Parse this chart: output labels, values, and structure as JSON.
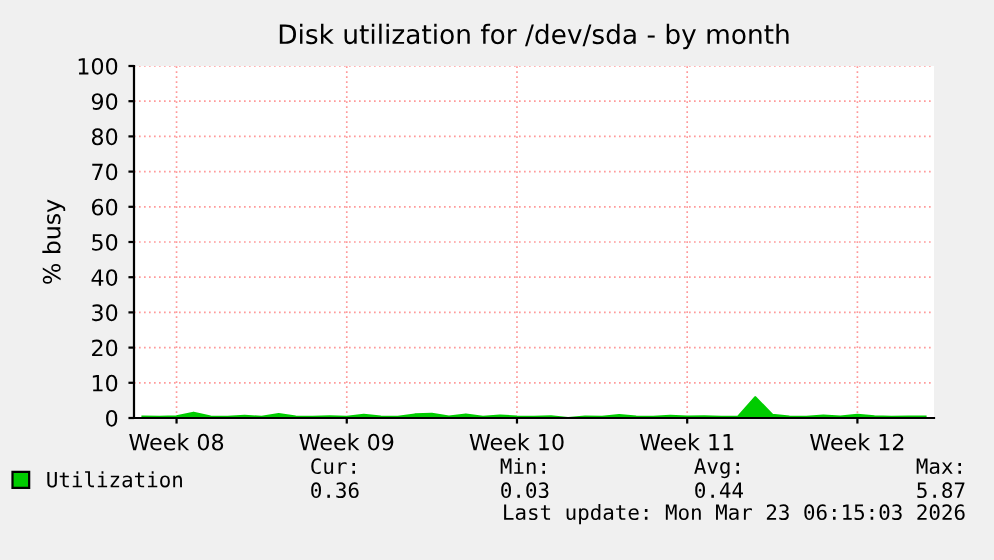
{
  "chart_data": {
    "type": "area",
    "title": "Disk utilization for /dev/sda - by month",
    "ylabel": "% busy",
    "categories": [
      null,
      null,
      "Week 08",
      null,
      null,
      null,
      null,
      null,
      null,
      null,
      null,
      null,
      "Week 09",
      null,
      null,
      null,
      null,
      null,
      null,
      null,
      null,
      null,
      "Week 10",
      null,
      null,
      null,
      null,
      null,
      null,
      null,
      null,
      null,
      "Week 11",
      null,
      null,
      null,
      null,
      null,
      null,
      null,
      null,
      null,
      "Week 12",
      null,
      null,
      null,
      null
    ],
    "series": [
      {
        "name": "Utilization",
        "color": "#00cc00",
        "values": [
          0.4,
          0.3,
          0.5,
          1.5,
          0.4,
          0.3,
          0.6,
          0.3,
          1.1,
          0.4,
          0.3,
          0.5,
          0.3,
          0.9,
          0.4,
          0.3,
          1.0,
          1.2,
          0.4,
          1.0,
          0.3,
          0.7,
          0.4,
          0.3,
          0.5,
          0.0,
          0.4,
          0.3,
          0.8,
          0.4,
          0.3,
          0.6,
          0.4,
          0.5,
          0.3,
          0.4,
          5.9,
          0.9,
          0.4,
          0.3,
          0.7,
          0.4,
          0.9,
          0.5,
          0.3,
          0.4,
          0.4
        ]
      }
    ],
    "ylim": [
      0,
      100
    ],
    "yticks": [
      0,
      10,
      20,
      30,
      40,
      50,
      60,
      70,
      80,
      90,
      100
    ],
    "grid": true,
    "legend": "bottom",
    "annotations": [
      "Cur:",
      "Min:",
      "Avg:",
      "Max:",
      "0.36",
      "0.03",
      "0.44",
      "5.87",
      "Last update: Mon Mar 23 06:15:03 2026"
    ]
  }
}
